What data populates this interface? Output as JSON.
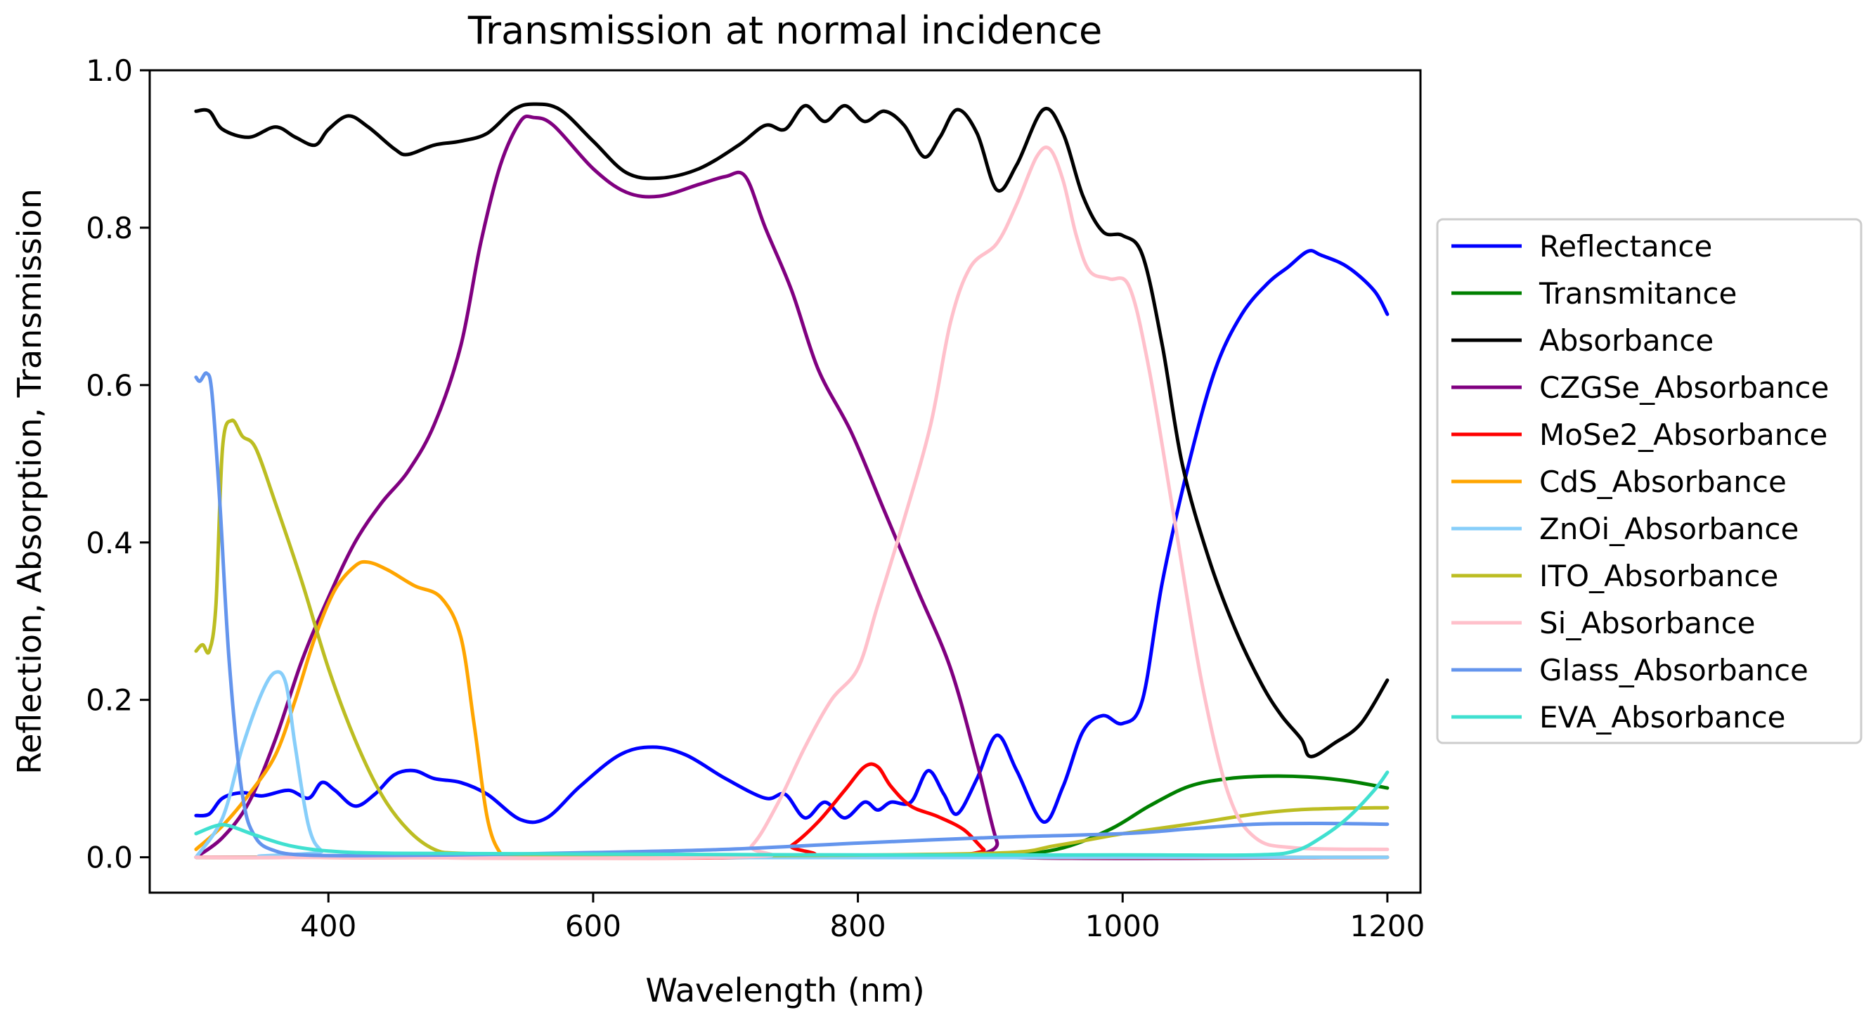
{
  "chart_data": {
    "type": "line",
    "title": "Transmission at normal incidence",
    "xlabel": "Wavelength (nm)",
    "ylabel": "Reflection, Absorption, Transmission",
    "xlim": [
      265,
      1225
    ],
    "ylim": [
      -0.045,
      1.0
    ],
    "xticks": [
      400,
      600,
      800,
      1000,
      1200
    ],
    "xtick_labels": [
      "400",
      "600",
      "800",
      "1000",
      "1200"
    ],
    "yticks": [
      0.0,
      0.2,
      0.4,
      0.6,
      0.8,
      1.0
    ],
    "ytick_labels": [
      "0.0",
      "0.2",
      "0.4",
      "0.6",
      "0.8",
      "1.0"
    ],
    "grid": false,
    "legend_position": "outside-right",
    "series": [
      {
        "name": "Reflectance",
        "color": "#0000ff",
        "points": [
          [
            300,
            0.053
          ],
          [
            310,
            0.055
          ],
          [
            320,
            0.075
          ],
          [
            335,
            0.082
          ],
          [
            350,
            0.078
          ],
          [
            370,
            0.085
          ],
          [
            385,
            0.075
          ],
          [
            395,
            0.095
          ],
          [
            405,
            0.085
          ],
          [
            420,
            0.065
          ],
          [
            435,
            0.08
          ],
          [
            450,
            0.105
          ],
          [
            465,
            0.11
          ],
          [
            480,
            0.1
          ],
          [
            500,
            0.095
          ],
          [
            520,
            0.08
          ],
          [
            545,
            0.048
          ],
          [
            565,
            0.05
          ],
          [
            590,
            0.09
          ],
          [
            620,
            0.13
          ],
          [
            645,
            0.14
          ],
          [
            670,
            0.13
          ],
          [
            700,
            0.1
          ],
          [
            730,
            0.075
          ],
          [
            745,
            0.08
          ],
          [
            760,
            0.05
          ],
          [
            775,
            0.07
          ],
          [
            790,
            0.05
          ],
          [
            805,
            0.07
          ],
          [
            815,
            0.06
          ],
          [
            825,
            0.07
          ],
          [
            840,
            0.07
          ],
          [
            853,
            0.11
          ],
          [
            865,
            0.08
          ],
          [
            875,
            0.055
          ],
          [
            890,
            0.1
          ],
          [
            905,
            0.155
          ],
          [
            920,
            0.11
          ],
          [
            940,
            0.045
          ],
          [
            955,
            0.09
          ],
          [
            970,
            0.16
          ],
          [
            985,
            0.18
          ],
          [
            1000,
            0.17
          ],
          [
            1015,
            0.2
          ],
          [
            1030,
            0.35
          ],
          [
            1050,
            0.5
          ],
          [
            1070,
            0.62
          ],
          [
            1090,
            0.69
          ],
          [
            1110,
            0.73
          ],
          [
            1125,
            0.75
          ],
          [
            1140,
            0.77
          ],
          [
            1150,
            0.765
          ],
          [
            1170,
            0.75
          ],
          [
            1190,
            0.72
          ],
          [
            1200,
            0.69
          ]
        ]
      },
      {
        "name": "Transmitance",
        "color": "#008000",
        "points": [
          [
            300,
            0.0
          ],
          [
            800,
            0.0
          ],
          [
            900,
            0.002
          ],
          [
            950,
            0.01
          ],
          [
            990,
            0.035
          ],
          [
            1020,
            0.065
          ],
          [
            1050,
            0.09
          ],
          [
            1080,
            0.1
          ],
          [
            1110,
            0.103
          ],
          [
            1140,
            0.102
          ],
          [
            1170,
            0.097
          ],
          [
            1200,
            0.088
          ]
        ]
      },
      {
        "name": "Absorbance",
        "color": "#000000",
        "points": [
          [
            300,
            0.948
          ],
          [
            310,
            0.948
          ],
          [
            320,
            0.925
          ],
          [
            340,
            0.915
          ],
          [
            360,
            0.928
          ],
          [
            375,
            0.915
          ],
          [
            390,
            0.905
          ],
          [
            400,
            0.925
          ],
          [
            415,
            0.942
          ],
          [
            430,
            0.928
          ],
          [
            450,
            0.9
          ],
          [
            460,
            0.893
          ],
          [
            480,
            0.905
          ],
          [
            500,
            0.91
          ],
          [
            520,
            0.92
          ],
          [
            540,
            0.95
          ],
          [
            555,
            0.957
          ],
          [
            575,
            0.95
          ],
          [
            600,
            0.91
          ],
          [
            625,
            0.87
          ],
          [
            650,
            0.863
          ],
          [
            680,
            0.875
          ],
          [
            710,
            0.905
          ],
          [
            730,
            0.93
          ],
          [
            745,
            0.925
          ],
          [
            760,
            0.955
          ],
          [
            775,
            0.935
          ],
          [
            790,
            0.955
          ],
          [
            805,
            0.935
          ],
          [
            820,
            0.948
          ],
          [
            835,
            0.93
          ],
          [
            850,
            0.89
          ],
          [
            862,
            0.915
          ],
          [
            875,
            0.95
          ],
          [
            890,
            0.92
          ],
          [
            905,
            0.848
          ],
          [
            920,
            0.88
          ],
          [
            940,
            0.95
          ],
          [
            955,
            0.92
          ],
          [
            970,
            0.84
          ],
          [
            985,
            0.795
          ],
          [
            1000,
            0.79
          ],
          [
            1015,
            0.765
          ],
          [
            1030,
            0.65
          ],
          [
            1045,
            0.5
          ],
          [
            1065,
            0.38
          ],
          [
            1085,
            0.29
          ],
          [
            1105,
            0.22
          ],
          [
            1120,
            0.18
          ],
          [
            1135,
            0.15
          ],
          [
            1142,
            0.128
          ],
          [
            1160,
            0.145
          ],
          [
            1180,
            0.17
          ],
          [
            1200,
            0.225
          ]
        ]
      },
      {
        "name": "CZGSe_Absorbance",
        "color": "#800080",
        "points": [
          [
            300,
            0.0
          ],
          [
            320,
            0.025
          ],
          [
            340,
            0.07
          ],
          [
            360,
            0.15
          ],
          [
            380,
            0.25
          ],
          [
            400,
            0.33
          ],
          [
            420,
            0.4
          ],
          [
            440,
            0.45
          ],
          [
            460,
            0.49
          ],
          [
            480,
            0.55
          ],
          [
            500,
            0.65
          ],
          [
            515,
            0.78
          ],
          [
            530,
            0.88
          ],
          [
            545,
            0.935
          ],
          [
            555,
            0.94
          ],
          [
            570,
            0.93
          ],
          [
            600,
            0.875
          ],
          [
            625,
            0.845
          ],
          [
            650,
            0.84
          ],
          [
            680,
            0.855
          ],
          [
            700,
            0.865
          ],
          [
            715,
            0.865
          ],
          [
            730,
            0.8
          ],
          [
            750,
            0.72
          ],
          [
            770,
            0.62
          ],
          [
            795,
            0.54
          ],
          [
            820,
            0.44
          ],
          [
            845,
            0.34
          ],
          [
            870,
            0.24
          ],
          [
            890,
            0.12
          ],
          [
            905,
            0.02
          ],
          [
            915,
            0.0
          ],
          [
            1200,
            0.0
          ]
        ]
      },
      {
        "name": "MoSe2_Absorbance",
        "color": "#ff0000",
        "points": [
          [
            300,
            0.0
          ],
          [
            730,
            0.0
          ],
          [
            750,
            0.015
          ],
          [
            770,
            0.045
          ],
          [
            790,
            0.085
          ],
          [
            805,
            0.115
          ],
          [
            815,
            0.115
          ],
          [
            825,
            0.09
          ],
          [
            840,
            0.065
          ],
          [
            860,
            0.052
          ],
          [
            880,
            0.035
          ],
          [
            895,
            0.01
          ],
          [
            905,
            0.0
          ],
          [
            1200,
            0.0
          ]
        ]
      },
      {
        "name": "CdS_Absorbance",
        "color": "#ffa500",
        "points": [
          [
            300,
            0.01
          ],
          [
            320,
            0.04
          ],
          [
            340,
            0.08
          ],
          [
            360,
            0.13
          ],
          [
            375,
            0.2
          ],
          [
            390,
            0.28
          ],
          [
            405,
            0.34
          ],
          [
            420,
            0.37
          ],
          [
            430,
            0.375
          ],
          [
            445,
            0.365
          ],
          [
            465,
            0.345
          ],
          [
            485,
            0.33
          ],
          [
            500,
            0.28
          ],
          [
            510,
            0.17
          ],
          [
            520,
            0.05
          ],
          [
            530,
            0.005
          ],
          [
            540,
            0.0
          ],
          [
            1200,
            0.0
          ]
        ]
      },
      {
        "name": "ZnOi_Absorbance",
        "color": "#87cefa",
        "points": [
          [
            300,
            0.0
          ],
          [
            320,
            0.05
          ],
          [
            335,
            0.14
          ],
          [
            350,
            0.21
          ],
          [
            360,
            0.235
          ],
          [
            368,
            0.22
          ],
          [
            375,
            0.14
          ],
          [
            385,
            0.04
          ],
          [
            395,
            0.008
          ],
          [
            410,
            0.0
          ],
          [
            1200,
            0.0
          ]
        ]
      },
      {
        "name": "ITO_Absorbance",
        "color": "#bcbd22",
        "points": [
          [
            300,
            0.262
          ],
          [
            305,
            0.27
          ],
          [
            310,
            0.262
          ],
          [
            315,
            0.32
          ],
          [
            320,
            0.52
          ],
          [
            327,
            0.555
          ],
          [
            335,
            0.535
          ],
          [
            345,
            0.52
          ],
          [
            360,
            0.45
          ],
          [
            380,
            0.35
          ],
          [
            400,
            0.24
          ],
          [
            420,
            0.15
          ],
          [
            440,
            0.08
          ],
          [
            460,
            0.035
          ],
          [
            480,
            0.01
          ],
          [
            500,
            0.005
          ],
          [
            560,
            0.003
          ],
          [
            700,
            0.002
          ],
          [
            900,
            0.005
          ],
          [
            950,
            0.015
          ],
          [
            1000,
            0.03
          ],
          [
            1050,
            0.042
          ],
          [
            1100,
            0.055
          ],
          [
            1130,
            0.06
          ],
          [
            1160,
            0.062
          ],
          [
            1200,
            0.063
          ]
        ]
      },
      {
        "name": "Si_Absorbance",
        "color": "#ffc0cb",
        "points": [
          [
            300,
            0.0
          ],
          [
            700,
            0.0
          ],
          [
            720,
            0.015
          ],
          [
            740,
            0.07
          ],
          [
            760,
            0.14
          ],
          [
            780,
            0.2
          ],
          [
            800,
            0.24
          ],
          [
            815,
            0.32
          ],
          [
            835,
            0.43
          ],
          [
            855,
            0.55
          ],
          [
            870,
            0.68
          ],
          [
            885,
            0.75
          ],
          [
            905,
            0.78
          ],
          [
            920,
            0.83
          ],
          [
            935,
            0.89
          ],
          [
            945,
            0.9
          ],
          [
            955,
            0.86
          ],
          [
            965,
            0.79
          ],
          [
            975,
            0.745
          ],
          [
            990,
            0.735
          ],
          [
            1005,
            0.725
          ],
          [
            1020,
            0.62
          ],
          [
            1040,
            0.42
          ],
          [
            1060,
            0.22
          ],
          [
            1080,
            0.08
          ],
          [
            1100,
            0.025
          ],
          [
            1130,
            0.012
          ],
          [
            1200,
            0.01
          ]
        ]
      },
      {
        "name": "Glass_Absorbance",
        "color": "#6495ed",
        "points": [
          [
            300,
            0.61
          ],
          [
            303,
            0.605
          ],
          [
            308,
            0.615
          ],
          [
            312,
            0.59
          ],
          [
            318,
            0.45
          ],
          [
            325,
            0.25
          ],
          [
            335,
            0.08
          ],
          [
            345,
            0.025
          ],
          [
            360,
            0.008
          ],
          [
            380,
            0.003
          ],
          [
            420,
            0.002
          ],
          [
            500,
            0.003
          ],
          [
            600,
            0.006
          ],
          [
            700,
            0.01
          ],
          [
            800,
            0.018
          ],
          [
            900,
            0.025
          ],
          [
            1000,
            0.03
          ],
          [
            1050,
            0.036
          ],
          [
            1100,
            0.042
          ],
          [
            1150,
            0.043
          ],
          [
            1200,
            0.042
          ]
        ]
      },
      {
        "name": "EVA_Absorbance",
        "color": "#40e0d0",
        "points": [
          [
            300,
            0.03
          ],
          [
            315,
            0.04
          ],
          [
            325,
            0.04
          ],
          [
            345,
            0.028
          ],
          [
            370,
            0.015
          ],
          [
            400,
            0.008
          ],
          [
            450,
            0.005
          ],
          [
            600,
            0.004
          ],
          [
            800,
            0.003
          ],
          [
            1000,
            0.003
          ],
          [
            1100,
            0.003
          ],
          [
            1130,
            0.008
          ],
          [
            1150,
            0.025
          ],
          [
            1170,
            0.05
          ],
          [
            1190,
            0.085
          ],
          [
            1200,
            0.108
          ]
        ]
      }
    ]
  }
}
